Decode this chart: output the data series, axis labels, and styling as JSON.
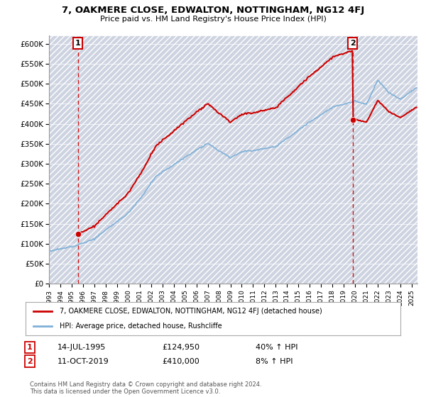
{
  "title": "7, OAKMERE CLOSE, EDWALTON, NOTTINGHAM, NG12 4FJ",
  "subtitle": "Price paid vs. HM Land Registry's House Price Index (HPI)",
  "property_label": "7, OAKMERE CLOSE, EDWALTON, NOTTINGHAM, NG12 4FJ (detached house)",
  "hpi_label": "HPI: Average price, detached house, Rushcliffe",
  "sale1_date": "14-JUL-1995",
  "sale1_price": "£124,950",
  "sale1_note": "40% ↑ HPI",
  "sale2_date": "11-OCT-2019",
  "sale2_price": "£410,000",
  "sale2_note": "8% ↑ HPI",
  "footer": "Contains HM Land Registry data © Crown copyright and database right 2024.\nThis data is licensed under the Open Government Licence v3.0.",
  "property_color": "#cc0000",
  "hpi_color": "#7fb0d8",
  "bg_color": "#cdd3e0",
  "ylim": [
    0,
    620000
  ],
  "yticks": [
    0,
    50000,
    100000,
    150000,
    200000,
    250000,
    300000,
    350000,
    400000,
    450000,
    500000,
    550000,
    600000
  ],
  "sale1_year": 1995.54,
  "sale2_year": 2019.79,
  "sale1_price_val": 124950,
  "sale2_price_val": 410000
}
